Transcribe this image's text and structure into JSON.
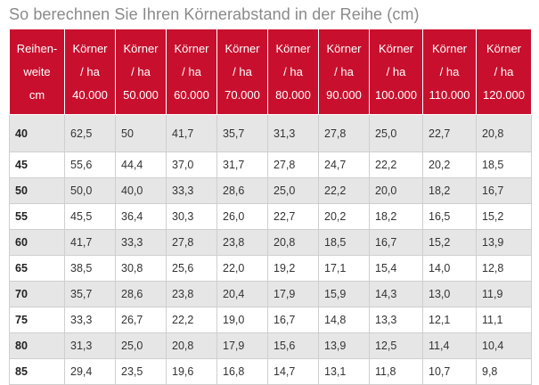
{
  "title": "So berechnen Sie Ihren Körnerabstand in der Reihe (cm)",
  "header": {
    "first_col": [
      "Reihen-",
      "weite",
      "cm"
    ],
    "columns": [
      [
        "Körner",
        "/ ha",
        "40.000"
      ],
      [
        "Körner",
        "/ ha",
        "50.000"
      ],
      [
        "Körner",
        "/ ha",
        "60.000"
      ],
      [
        "Körner",
        "/ ha",
        "70.000"
      ],
      [
        "Körner",
        "/ ha",
        "80.000"
      ],
      [
        "Körner",
        "/ ha",
        "90.000"
      ],
      [
        "Körner",
        "/ ha",
        "100.000"
      ],
      [
        "Körner",
        "/ ha",
        "110.000"
      ],
      [
        "Körner",
        "/ ha",
        "120.000"
      ]
    ]
  },
  "rows": [
    [
      "40",
      "62,5",
      "50",
      "41,7",
      "35,7",
      "31,3",
      "27,8",
      "25,0",
      "22,7",
      "20,8"
    ],
    [
      "45",
      "55,6",
      "44,4",
      "37,0",
      "31,7",
      "27,8",
      "24,7",
      "22,2",
      "20,2",
      "18,5"
    ],
    [
      "50",
      "50,0",
      "40,0",
      "33,3",
      "28,6",
      "25,0",
      "22,2",
      "20,0",
      "18,2",
      "16,7"
    ],
    [
      "55",
      "45,5",
      "36,4",
      "30,3",
      "26,0",
      "22,7",
      "20,2",
      "18,2",
      "16,5",
      "15,2"
    ],
    [
      "60",
      "41,7",
      "33,3",
      "27,8",
      "23,8",
      "20,8",
      "18,5",
      "16,7",
      "15,2",
      "13,9"
    ],
    [
      "65",
      "38,5",
      "30,8",
      "25,6",
      "22,0",
      "19,2",
      "17,1",
      "15,4",
      "14,0",
      "12,8"
    ],
    [
      "70",
      "35,7",
      "28,6",
      "23,8",
      "20,4",
      "17,9",
      "15,9",
      "14,3",
      "13,0",
      "11,9"
    ],
    [
      "75",
      "33,3",
      "26,7",
      "22,2",
      "19,0",
      "16,7",
      "14,8",
      "13,3",
      "12,1",
      "11,1"
    ],
    [
      "80",
      "31,3",
      "25,0",
      "20,8",
      "17,9",
      "15,6",
      "13,9",
      "12,5",
      "11,4",
      "10,4"
    ],
    [
      "85",
      "29,4",
      "23,5",
      "19,6",
      "16,8",
      "14,7",
      "13,1",
      "11,8",
      "10,7",
      "9,8"
    ]
  ],
  "colors": {
    "header_bg": "#c8102e",
    "header_text": "#ffffff",
    "row_alt_bg": "#e6e6e6",
    "title_text": "#8a8a8a"
  }
}
